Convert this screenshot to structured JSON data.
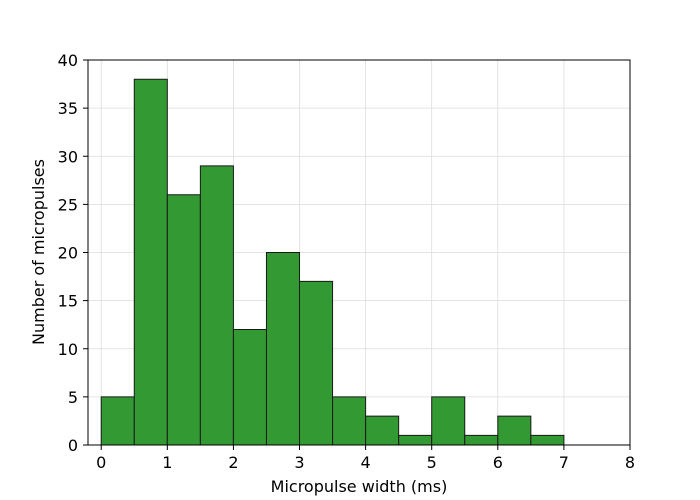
{
  "chart_data": {
    "type": "histogram",
    "xlabel": "Micropulse width (ms)",
    "ylabel": "Number of micropulses",
    "bins": [
      0,
      0.5,
      1,
      1.5,
      2,
      2.5,
      3,
      3.5,
      4,
      4.5,
      5,
      5.5,
      6,
      6.5,
      7
    ],
    "values": [
      5,
      38,
      26,
      29,
      12,
      20,
      17,
      5,
      3,
      1,
      5,
      1,
      3,
      1
    ],
    "color": "#339933",
    "edgecolor": "#1a1a1a",
    "xlim": [
      -0.2,
      8
    ],
    "ylim": [
      0,
      40
    ],
    "xticks": [
      0,
      1,
      2,
      3,
      4,
      5,
      6,
      7,
      8
    ],
    "yticks": [
      0,
      5,
      10,
      15,
      20,
      25,
      30,
      35,
      40
    ],
    "grid": true
  }
}
